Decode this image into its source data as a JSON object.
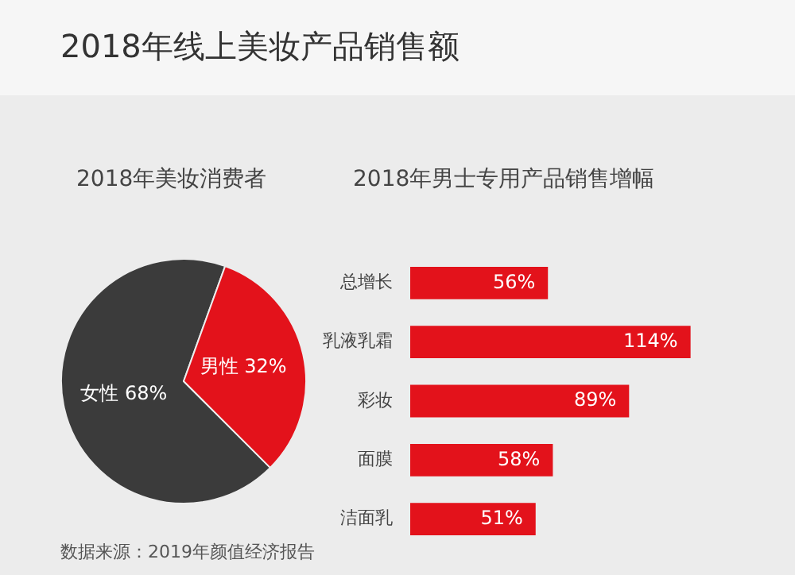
{
  "chart_data": [
    {
      "type": "pie",
      "title": "2018年线上美妆产品销售额",
      "subtitle": "2018年美妆消费者",
      "categories": [
        "女性",
        "男性"
      ],
      "values": [
        68,
        32
      ],
      "colors": [
        "#3b3b3b",
        "#e3121b"
      ],
      "value_labels": [
        "68%",
        "32%"
      ],
      "legend": false,
      "annotations": [
        "数据来源：2019年颜值经济报告"
      ]
    },
    {
      "type": "bar",
      "orientation": "horizontal",
      "title": "2018年男士专用产品销售增幅",
      "categories": [
        "总增长",
        "乳液乳霜",
        "彩妆",
        "面膜",
        "洁面乳"
      ],
      "values": [
        56,
        114,
        89,
        58,
        51
      ],
      "color": "#e3121b",
      "value_labels": [
        "56%",
        "114%",
        "89%",
        "58%",
        "51%"
      ],
      "tick_labels": "y",
      "legend": false
    }
  ]
}
